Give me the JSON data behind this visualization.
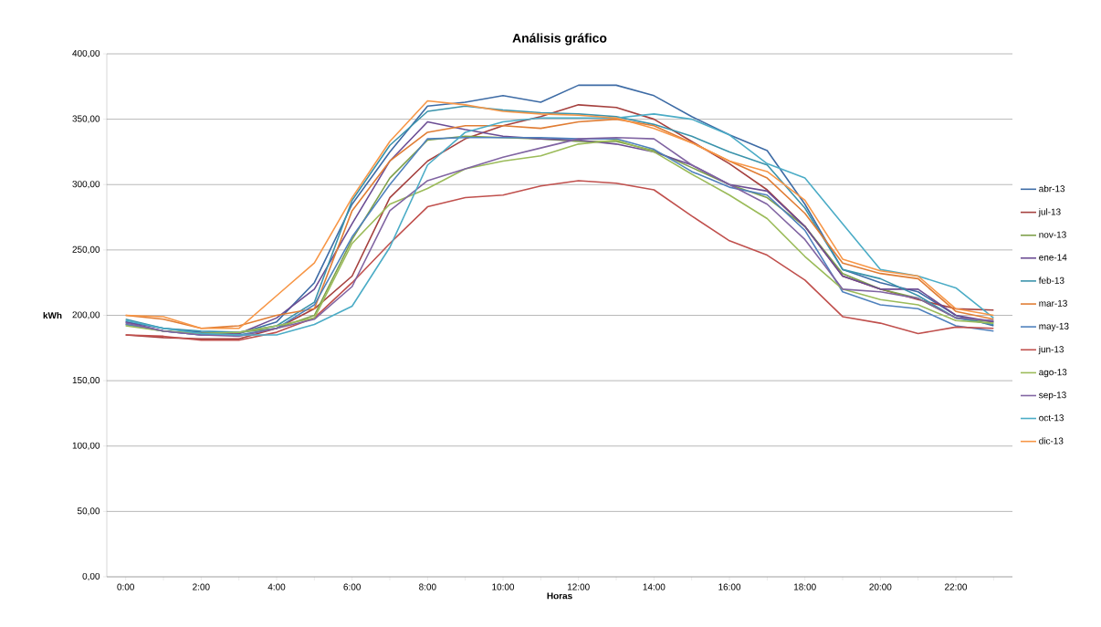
{
  "chart_data": {
    "type": "line",
    "title": "Análisis gráfico",
    "xlabel": "Horas",
    "ylabel": "kWh",
    "categories": [
      "0:00",
      null,
      "2:00",
      null,
      "4:00",
      null,
      "6:00",
      null,
      "8:00",
      null,
      "10:00",
      null,
      "12:00",
      null,
      "14:00",
      null,
      "16:00",
      null,
      "18:00",
      null,
      "20:00",
      null,
      "22:00",
      null
    ],
    "ylim": [
      0,
      400
    ],
    "yticks": [
      {
        "value": 0,
        "label": "0,00"
      },
      {
        "value": 50,
        "label": "50,00"
      },
      {
        "value": 100,
        "label": "100,00"
      },
      {
        "value": 150,
        "label": "150,00"
      },
      {
        "value": 200,
        "label": "200,00"
      },
      {
        "value": 250,
        "label": "250,00"
      },
      {
        "value": 300,
        "label": "300,00"
      },
      {
        "value": 350,
        "label": "350,00"
      },
      {
        "value": 400,
        "label": "400,00"
      }
    ],
    "grid": "y",
    "legend": "right",
    "marker": "none",
    "line_style": "solid",
    "series": [
      {
        "name": "abr-13",
        "color": "#3d6ba5",
        "values": [
          195,
          190,
          187,
          186,
          195,
          225,
          285,
          325,
          360,
          363,
          368,
          363,
          376,
          376,
          368,
          352,
          338,
          326,
          285,
          235,
          225,
          218,
          200,
          192
        ]
      },
      {
        "name": "jul-13",
        "color": "#a5403e",
        "values": [
          185,
          183,
          182,
          182,
          190,
          205,
          230,
          290,
          318,
          335,
          345,
          352,
          361,
          359,
          350,
          333,
          316,
          296,
          268,
          230,
          220,
          212,
          205,
          204
        ]
      },
      {
        "name": "nov-13",
        "color": "#7ea04a",
        "values": [
          193,
          188,
          186,
          187,
          190,
          200,
          258,
          305,
          334,
          337,
          336,
          335,
          333,
          333,
          326,
          313,
          300,
          290,
          268,
          232,
          220,
          213,
          198,
          195
        ]
      },
      {
        "name": "ene-14",
        "color": "#6b4c93",
        "values": [
          195,
          188,
          185,
          186,
          198,
          220,
          270,
          318,
          348,
          342,
          337,
          335,
          334,
          331,
          325,
          315,
          300,
          295,
          268,
          230,
          220,
          220,
          200,
          195
        ]
      },
      {
        "name": "feb-13",
        "color": "#3a93ab",
        "values": [
          197,
          190,
          188,
          187,
          192,
          210,
          288,
          330,
          356,
          360,
          357,
          355,
          354,
          352,
          346,
          337,
          325,
          315,
          282,
          235,
          228,
          215,
          198,
          193
        ]
      },
      {
        "name": "mar-13",
        "color": "#e07d34",
        "values": [
          200,
          197,
          190,
          192,
          200,
          205,
          280,
          318,
          340,
          345,
          345,
          343,
          348,
          350,
          345,
          332,
          318,
          305,
          278,
          240,
          232,
          228,
          203,
          197
        ]
      },
      {
        "name": "may-13",
        "color": "#4f81bd",
        "values": [
          193,
          188,
          185,
          185,
          190,
          208,
          260,
          300,
          335,
          336,
          336,
          336,
          335,
          335,
          327,
          310,
          298,
          292,
          265,
          218,
          208,
          205,
          192,
          188
        ]
      },
      {
        "name": "jun-13",
        "color": "#c0504d",
        "values": [
          185,
          184,
          181,
          181,
          187,
          198,
          225,
          255,
          283,
          290,
          292,
          299,
          303,
          301,
          296,
          276,
          257,
          246,
          227,
          199,
          194,
          186,
          191,
          190
        ]
      },
      {
        "name": "ago-13",
        "color": "#9bbb59",
        "values": [
          192,
          188,
          186,
          187,
          192,
          198,
          255,
          285,
          297,
          312,
          318,
          322,
          331,
          334,
          325,
          308,
          292,
          274,
          245,
          220,
          212,
          208,
          196,
          194
        ]
      },
      {
        "name": "sep-13",
        "color": "#8064a2",
        "values": [
          194,
          188,
          185,
          184,
          190,
          197,
          222,
          280,
          303,
          312,
          321,
          328,
          335,
          336,
          335,
          315,
          300,
          285,
          258,
          220,
          218,
          213,
          198,
          196
        ]
      },
      {
        "name": "oct-13",
        "color": "#4bacc6",
        "values": [
          196,
          190,
          186,
          185,
          185,
          193,
          207,
          252,
          315,
          340,
          348,
          351,
          351,
          351,
          354,
          350,
          338,
          316,
          305,
          270,
          235,
          230,
          221,
          198
        ]
      },
      {
        "name": "dic-13",
        "color": "#f79646",
        "values": [
          200,
          199,
          190,
          190,
          215,
          240,
          290,
          333,
          364,
          361,
          356,
          354,
          353,
          351,
          343,
          332,
          318,
          310,
          288,
          243,
          234,
          230,
          205,
          200
        ]
      }
    ]
  }
}
